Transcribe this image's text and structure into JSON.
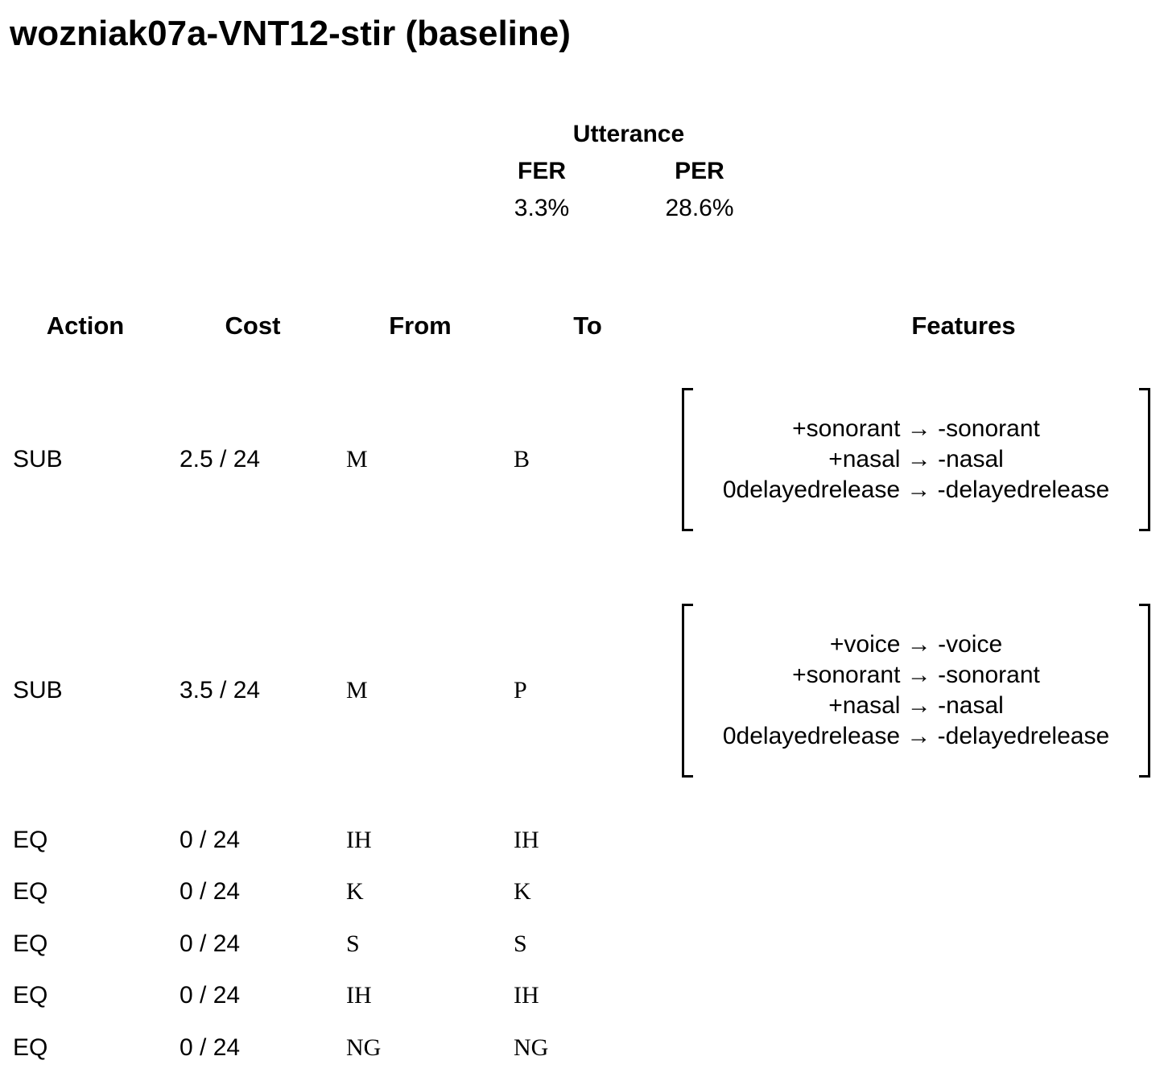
{
  "title": "wozniak07a-VNT12-stir (baseline)",
  "utterance": {
    "heading": "Utterance",
    "fer_label": "FER",
    "per_label": "PER",
    "fer_value": "3.3%",
    "per_value": "28.6%"
  },
  "table": {
    "headers": {
      "action": "Action",
      "cost": "Cost",
      "from": "From",
      "to": "To",
      "features": "Features"
    },
    "rows": [
      {
        "action": "SUB",
        "cost": "2.5 / 24",
        "from": "M",
        "to": "B",
        "features": [
          "+sonorant → -sonorant",
          "+nasal → -nasal",
          "0delayedrelease → -delayedrelease"
        ]
      },
      {
        "action": "SUB",
        "cost": "3.5 / 24",
        "from": "M",
        "to": "P",
        "features": [
          "+voice → -voice",
          "+sonorant → -sonorant",
          "+nasal → -nasal",
          "0delayedrelease → -delayedrelease"
        ]
      },
      {
        "action": "EQ",
        "cost": "0 / 24",
        "from": "IH",
        "to": "IH",
        "features": []
      },
      {
        "action": "EQ",
        "cost": "0 / 24",
        "from": "K",
        "to": "K",
        "features": []
      },
      {
        "action": "EQ",
        "cost": "0 / 24",
        "from": "S",
        "to": "S",
        "features": []
      },
      {
        "action": "EQ",
        "cost": "0 / 24",
        "from": "IH",
        "to": "IH",
        "features": []
      },
      {
        "action": "EQ",
        "cost": "0 / 24",
        "from": "NG",
        "to": "NG",
        "features": []
      }
    ]
  }
}
